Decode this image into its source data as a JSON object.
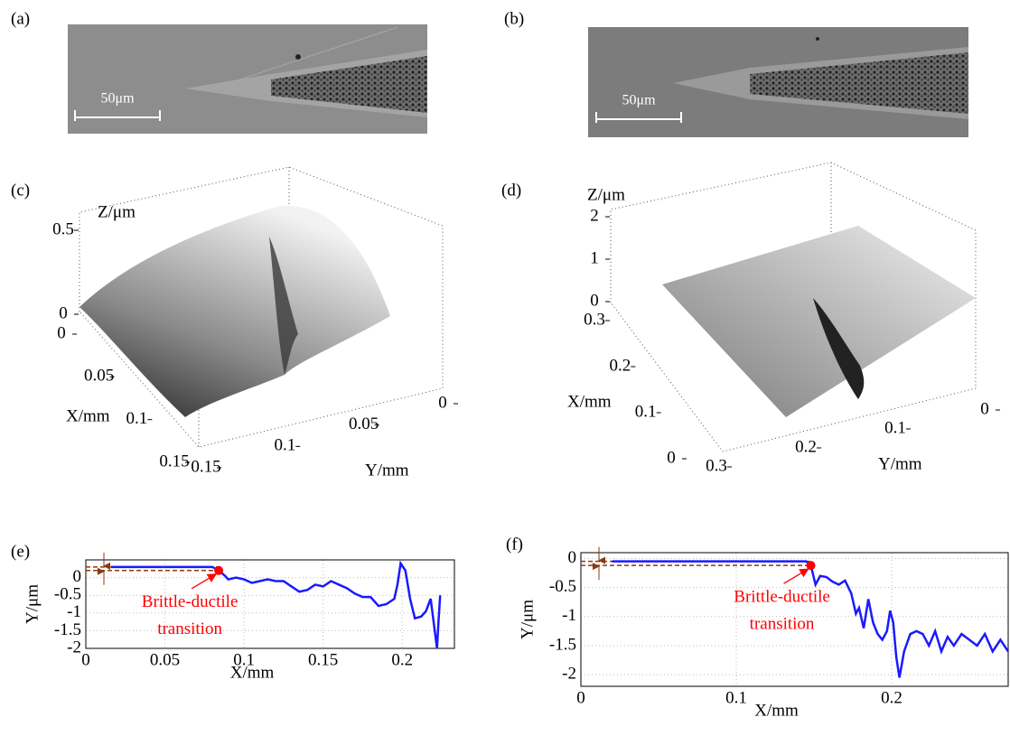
{
  "images": [
    {
      "label": "(a)",
      "scale_bar": "50μm"
    },
    {
      "label": "(b)",
      "scale_bar": "50μm"
    }
  ],
  "surfaces": [
    {
      "label": "(c)",
      "z_label": "Z/μm",
      "x_label": "X/mm",
      "y_label": "Y/mm",
      "zticks": [
        0,
        0.5
      ],
      "xticks": [
        0,
        0.05,
        0.1,
        0.15
      ],
      "yticks": [
        0,
        0.05,
        0.1,
        0.15
      ]
    },
    {
      "label": "(d)",
      "z_label": "Z/μm",
      "x_label": "X/mm",
      "y_label": "Y/mm",
      "zticks": [
        0,
        1,
        2
      ],
      "xticks": [
        0,
        0.1,
        0.2,
        0.3
      ],
      "yticks": [
        0,
        0.1,
        0.2,
        0.3
      ]
    }
  ],
  "chart_data": [
    {
      "type": "line",
      "panel_label": "(e)",
      "x_label": "X/mm",
      "y_label": "Y/μm",
      "annotation": [
        "Brittle-ductile",
        "transition"
      ],
      "xlim": [
        0,
        0.233
      ],
      "ylim": [
        -2,
        0.5
      ],
      "xticks": [
        0,
        0.05,
        0.1,
        0.15,
        0.2
      ],
      "yticks": [
        -2,
        -1.5,
        -1,
        -0.5,
        0
      ],
      "grid": true,
      "transition_point": {
        "x": 0.084,
        "y": 0.2,
        "color": "#ff0000"
      },
      "dashed_levels": {
        "values": [
          0.3,
          0.2
        ],
        "color": "#8b3a0f"
      },
      "series": [
        {
          "color": "#1a1aff",
          "x": [
            0.016,
            0.08,
            0.084,
            0.088,
            0.09,
            0.095,
            0.1,
            0.105,
            0.11,
            0.115,
            0.12,
            0.125,
            0.13,
            0.135,
            0.14,
            0.145,
            0.15,
            0.155,
            0.16,
            0.165,
            0.17,
            0.175,
            0.18,
            0.185,
            0.19,
            0.195,
            0.197,
            0.199,
            0.202,
            0.205,
            0.208,
            0.212,
            0.215,
            0.218,
            0.22,
            0.222,
            0.223,
            0.224
          ],
          "values": [
            0.3,
            0.3,
            0.2,
            0.05,
            -0.05,
            0.0,
            -0.05,
            -0.15,
            -0.1,
            -0.05,
            -0.1,
            -0.1,
            -0.25,
            -0.4,
            -0.35,
            -0.2,
            -0.25,
            -0.1,
            -0.2,
            -0.3,
            -0.45,
            -0.55,
            -0.55,
            -0.8,
            -0.75,
            -0.6,
            -0.2,
            0.4,
            0.2,
            -0.6,
            -1.15,
            -1.1,
            -0.95,
            -0.6,
            -1.3,
            -2.0,
            -1.2,
            -0.5
          ]
        }
      ]
    },
    {
      "type": "line",
      "panel_label": "(f)",
      "x_label": "X/mm",
      "y_label": "Y/μm",
      "annotation": [
        "Brittle-ductile",
        "transition"
      ],
      "xlim": [
        0,
        0.275
      ],
      "ylim": [
        -2.2,
        0.1
      ],
      "xticks": [
        0,
        0.1,
        0.2
      ],
      "yticks": [
        -2,
        -1.5,
        -1,
        -0.5,
        0
      ],
      "grid": true,
      "transition_point": {
        "x": 0.148,
        "y": -0.12,
        "color": "#ff0000"
      },
      "dashed_levels": {
        "values": [
          -0.05,
          -0.12
        ],
        "color": "#8b3a0f"
      },
      "series": [
        {
          "color": "#1a1aff",
          "x": [
            0.02,
            0.145,
            0.148,
            0.151,
            0.154,
            0.158,
            0.162,
            0.166,
            0.17,
            0.174,
            0.177,
            0.179,
            0.182,
            0.185,
            0.188,
            0.191,
            0.194,
            0.197,
            0.199,
            0.201,
            0.203,
            0.205,
            0.208,
            0.212,
            0.216,
            0.22,
            0.224,
            0.228,
            0.232,
            0.236,
            0.24,
            0.245,
            0.25,
            0.255,
            0.26,
            0.265,
            0.27,
            0.275
          ],
          "values": [
            -0.05,
            -0.05,
            -0.12,
            -0.45,
            -0.3,
            -0.32,
            -0.4,
            -0.45,
            -0.38,
            -0.6,
            -0.95,
            -0.85,
            -1.2,
            -0.7,
            -1.1,
            -1.3,
            -1.4,
            -1.25,
            -0.9,
            -1.1,
            -1.7,
            -2.05,
            -1.6,
            -1.3,
            -1.25,
            -1.3,
            -1.5,
            -1.25,
            -1.6,
            -1.35,
            -1.5,
            -1.3,
            -1.4,
            -1.5,
            -1.3,
            -1.6,
            -1.4,
            -1.6
          ]
        }
      ]
    }
  ]
}
